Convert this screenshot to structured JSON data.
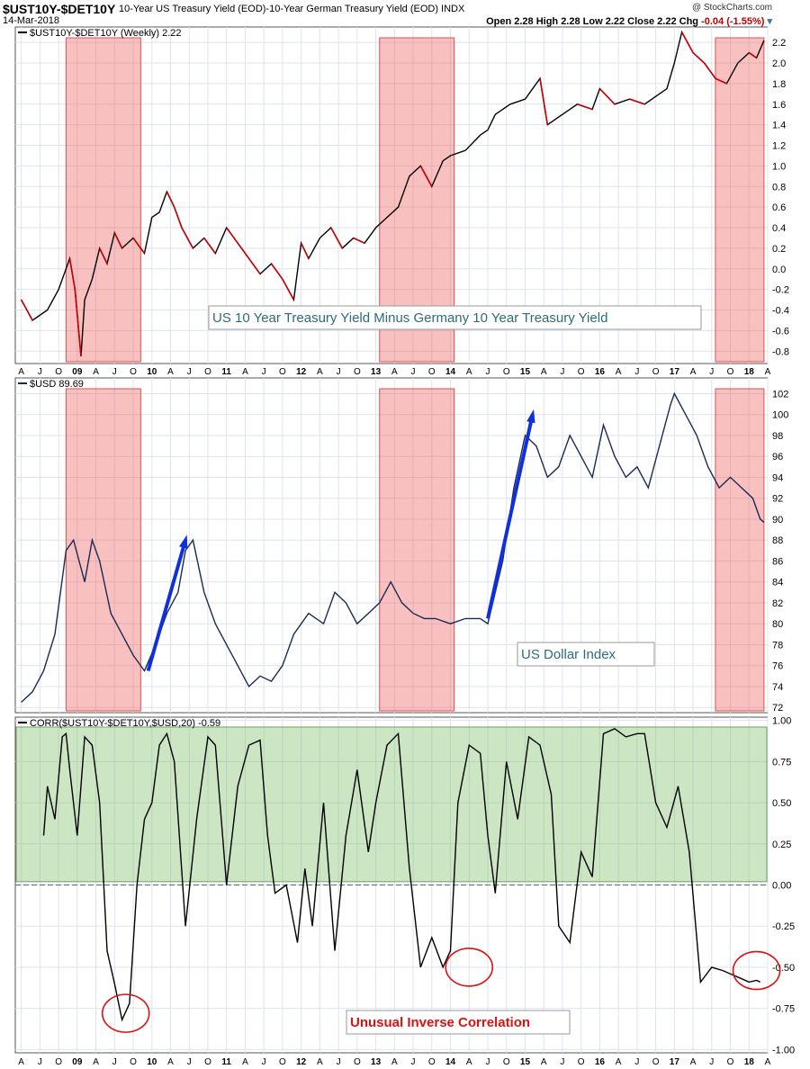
{
  "header": {
    "symbol": "$UST10Y-$DET10Y",
    "description": "10-Year US Treasury Yield (EOD)-10-Year German Treasury Yield (EOD)  INDX",
    "date": "14-Mar-2018",
    "copyright": "@ StockCharts.com",
    "ohlc": "Open 2.28  High 2.28  Low 2.22  Close 2.22  Chg",
    "chg": "-0.04 (-1.55%)"
  },
  "x_axis": {
    "labels": [
      "A",
      "J",
      "O",
      "09",
      "A",
      "J",
      "O",
      "10",
      "A",
      "J",
      "O",
      "11",
      "A",
      "J",
      "O",
      "12",
      "A",
      "J",
      "O",
      "13",
      "A",
      "J",
      "O",
      "14",
      "A",
      "J",
      "O",
      "15",
      "A",
      "J",
      "O",
      "16",
      "A",
      "J",
      "O",
      "17",
      "A",
      "J",
      "O",
      "18",
      "A"
    ],
    "year_labels": [
      "09",
      "10",
      "11",
      "12",
      "13",
      "14",
      "15",
      "16",
      "17",
      "18"
    ]
  },
  "chart_data": [
    {
      "type": "line",
      "legend": "$UST10Y-$DET10Y (Weekly) 2.22",
      "annotation": "US 10 Year Treasury Yield Minus Germany 10 Year Treasury Yield",
      "ylim": [
        -0.92,
        2.35
      ],
      "yticks": [
        "-0.8",
        "-0.6",
        "-0.4",
        "-0.2",
        "0.0",
        "0.2",
        "0.4",
        "0.6",
        "0.8",
        "1.0",
        "1.2",
        "1.4",
        "1.6",
        "1.8",
        "2.0",
        "2.2"
      ],
      "x": [
        2008.25,
        2008.4,
        2008.6,
        2008.75,
        2008.9,
        2008.97,
        2009.05,
        2009.1,
        2009.2,
        2009.3,
        2009.4,
        2009.5,
        2009.6,
        2009.75,
        2009.9,
        2010.0,
        2010.1,
        2010.2,
        2010.3,
        2010.4,
        2010.55,
        2010.7,
        2010.85,
        2011.0,
        2011.15,
        2011.3,
        2011.45,
        2011.6,
        2011.75,
        2011.9,
        2012.0,
        2012.1,
        2012.25,
        2012.4,
        2012.55,
        2012.7,
        2012.85,
        2013.0,
        2013.15,
        2013.3,
        2013.45,
        2013.6,
        2013.75,
        2013.9,
        2014.0,
        2014.2,
        2014.4,
        2014.5,
        2014.6,
        2014.8,
        2015.0,
        2015.2,
        2015.3,
        2015.5,
        2015.7,
        2015.9,
        2016.0,
        2016.2,
        2016.4,
        2016.6,
        2016.8,
        2016.9,
        2017.0,
        2017.1,
        2017.25,
        2017.4,
        2017.55,
        2017.7,
        2017.85,
        2018.0,
        2018.1,
        2018.2
      ],
      "y": [
        -0.3,
        -0.5,
        -0.4,
        -0.2,
        0.1,
        -0.2,
        -0.85,
        -0.3,
        -0.1,
        0.2,
        0.05,
        0.35,
        0.2,
        0.3,
        0.15,
        0.5,
        0.55,
        0.75,
        0.6,
        0.4,
        0.2,
        0.3,
        0.15,
        0.4,
        0.25,
        0.1,
        -0.05,
        0.05,
        -0.1,
        -0.3,
        0.25,
        0.1,
        0.3,
        0.4,
        0.2,
        0.3,
        0.25,
        0.4,
        0.5,
        0.6,
        0.9,
        1.0,
        0.8,
        1.05,
        1.1,
        1.15,
        1.3,
        1.35,
        1.5,
        1.6,
        1.65,
        1.85,
        1.4,
        1.5,
        1.6,
        1.55,
        1.75,
        1.6,
        1.65,
        1.6,
        1.7,
        1.75,
        2.0,
        2.3,
        2.1,
        2.0,
        1.85,
        1.8,
        2.0,
        2.1,
        2.05,
        2.22
      ],
      "shaded_ranges": [
        [
          2008.85,
          2009.85
        ],
        [
          2013.05,
          2014.05
        ],
        [
          2017.55,
          2018.2
        ]
      ]
    },
    {
      "type": "line",
      "legend": "$USD 89.69",
      "annotation": "US Dollar Index",
      "ylim": [
        71.5,
        103.5
      ],
      "yticks": [
        "72",
        "74",
        "76",
        "78",
        "80",
        "82",
        "84",
        "86",
        "88",
        "90",
        "92",
        "94",
        "96",
        "98",
        "100",
        "102"
      ],
      "x": [
        2008.25,
        2008.4,
        2008.55,
        2008.7,
        2008.85,
        2008.95,
        2009.1,
        2009.2,
        2009.3,
        2009.45,
        2009.6,
        2009.75,
        2009.9,
        2010.05,
        2010.2,
        2010.35,
        2010.45,
        2010.55,
        2010.7,
        2010.85,
        2011.0,
        2011.15,
        2011.3,
        2011.45,
        2011.6,
        2011.75,
        2011.9,
        2012.1,
        2012.3,
        2012.45,
        2012.6,
        2012.75,
        2012.9,
        2013.05,
        2013.2,
        2013.35,
        2013.5,
        2013.65,
        2013.8,
        2014.0,
        2014.2,
        2014.4,
        2014.5,
        2014.7,
        2014.85,
        2015.0,
        2015.15,
        2015.3,
        2015.45,
        2015.6,
        2015.75,
        2015.9,
        2016.05,
        2016.2,
        2016.35,
        2016.5,
        2016.65,
        2016.8,
        2016.95,
        2017.0,
        2017.15,
        2017.3,
        2017.45,
        2017.6,
        2017.75,
        2017.9,
        2018.05,
        2018.15,
        2018.2
      ],
      "y": [
        72.5,
        73.5,
        75.5,
        79,
        87,
        88,
        84,
        88,
        86,
        81,
        79,
        77,
        75.5,
        78,
        81,
        83,
        87,
        88,
        83,
        80,
        78,
        76,
        74,
        75,
        74.5,
        76,
        79,
        81,
        80,
        83,
        82,
        80,
        81,
        82,
        84,
        82,
        81,
        80.5,
        80.5,
        80,
        80.5,
        80.5,
        80,
        86,
        93,
        98,
        97,
        94,
        95,
        98,
        96,
        94,
        99,
        96,
        94,
        95,
        93,
        97,
        101,
        102,
        100,
        98,
        95,
        93,
        94,
        93,
        92,
        90,
        89.7
      ],
      "arrows": [
        [
          2009.95,
          75.5,
          2010.45,
          88
        ],
        [
          2014.5,
          80.5,
          2015.1,
          100
        ]
      ],
      "shaded_ranges": [
        [
          2008.85,
          2009.85
        ],
        [
          2013.05,
          2014.05
        ],
        [
          2017.55,
          2018.2
        ]
      ]
    },
    {
      "type": "line",
      "legend": "CORR($UST10Y-$DET10Y,$USD,20) -0.59",
      "annotation": "Unusual Inverse Correlation",
      "ylim": [
        -1.02,
        1.02
      ],
      "yticks": [
        "-1.00",
        "-0.75",
        "-0.50",
        "-0.25",
        "0.00",
        "0.25",
        "0.50",
        "0.75",
        "1.00"
      ],
      "x": [
        2008.55,
        2008.6,
        2008.7,
        2008.8,
        2008.85,
        2008.9,
        2009.0,
        2009.1,
        2009.2,
        2009.3,
        2009.4,
        2009.5,
        2009.6,
        2009.7,
        2009.8,
        2009.9,
        2010.0,
        2010.1,
        2010.2,
        2010.3,
        2010.45,
        2010.6,
        2010.75,
        2010.85,
        2011.0,
        2011.15,
        2011.3,
        2011.45,
        2011.55,
        2011.65,
        2011.8,
        2011.95,
        2012.05,
        2012.15,
        2012.3,
        2012.45,
        2012.6,
        2012.75,
        2012.9,
        2013.0,
        2013.15,
        2013.3,
        2013.45,
        2013.6,
        2013.75,
        2013.9,
        2014.0,
        2014.1,
        2014.25,
        2014.4,
        2014.5,
        2014.6,
        2014.75,
        2014.9,
        2015.05,
        2015.2,
        2015.35,
        2015.45,
        2015.6,
        2015.75,
        2015.9,
        2016.05,
        2016.2,
        2016.35,
        2016.5,
        2016.6,
        2016.75,
        2016.9,
        2017.05,
        2017.2,
        2017.35,
        2017.5,
        2017.65,
        2017.8,
        2017.9,
        2018.0,
        2018.1,
        2018.15
      ],
      "y": [
        0.3,
        0.6,
        0.4,
        0.9,
        0.92,
        0.7,
        0.3,
        0.9,
        0.85,
        0.5,
        -0.4,
        -0.6,
        -0.82,
        -0.72,
        0.0,
        0.4,
        0.5,
        0.85,
        0.92,
        0.75,
        -0.25,
        0.4,
        0.9,
        0.85,
        0.0,
        0.6,
        0.85,
        0.88,
        0.3,
        -0.05,
        0.0,
        -0.35,
        0.1,
        -0.25,
        0.5,
        -0.4,
        0.3,
        0.7,
        0.2,
        0.5,
        0.85,
        0.92,
        0.1,
        -0.5,
        -0.32,
        -0.5,
        -0.4,
        0.5,
        0.85,
        0.8,
        0.3,
        -0.05,
        0.75,
        0.4,
        0.9,
        0.85,
        0.55,
        -0.25,
        -0.35,
        0.2,
        0.05,
        0.92,
        0.95,
        0.9,
        0.92,
        0.92,
        0.5,
        0.35,
        0.6,
        0.2,
        -0.59,
        -0.5,
        -0.52,
        -0.55,
        -0.57,
        -0.59,
        -0.58,
        -0.59
      ],
      "shaded_band": [
        0.02,
        0.96
      ],
      "circles": [
        [
          2009.65,
          -0.78
        ],
        [
          2014.25,
          -0.5
        ],
        [
          2018.1,
          -0.52
        ]
      ]
    }
  ]
}
